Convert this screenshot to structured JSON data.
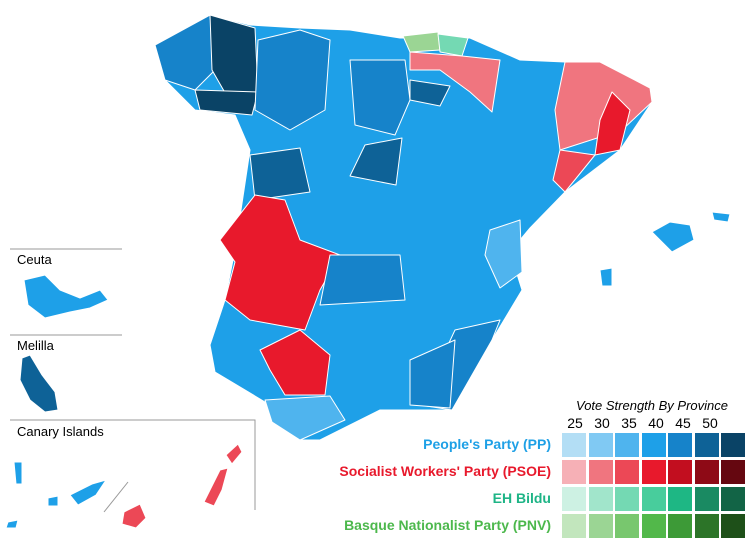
{
  "insets": {
    "ceuta": "Ceuta",
    "melilla": "Melilla",
    "canary": "Canary Islands"
  },
  "legend": {
    "title": "Vote Strength By Province",
    "ticks": [
      "25",
      "30",
      "35",
      "40",
      "45",
      "50"
    ],
    "parties": [
      {
        "label": "People's Party (PP)",
        "color": "#1ea0e6",
        "scale": [
          "#b3def5",
          "#80c9f3",
          "#4fb4ee",
          "#1ea0e8",
          "#1683ca",
          "#0e6297",
          "#0a4366"
        ]
      },
      {
        "label": "Socialist Workers' Party (PSOE)",
        "color": "#e8192c",
        "scale": [
          "#f6b0b6",
          "#f0757f",
          "#ec4856",
          "#e8192c",
          "#c20e1f",
          "#8e0a16",
          "#650710"
        ]
      },
      {
        "label": "EH Bildu",
        "color": "#1eb486",
        "scale": [
          "#cdf1e3",
          "#a1e5cb",
          "#74d9b3",
          "#48cd9c",
          "#1eb784",
          "#1a8a62",
          "#126446"
        ]
      },
      {
        "label": "Basque Nationalist Party (PNV)",
        "color": "#4cb84c",
        "scale": [
          "#c2e6bd",
          "#9bd594",
          "#78c76e",
          "#52b84a",
          "#3d9a37",
          "#2c7428",
          "#1e5019"
        ]
      }
    ]
  },
  "colors": {
    "pp_base": "#1ea0e8",
    "border": "#ffffff"
  }
}
